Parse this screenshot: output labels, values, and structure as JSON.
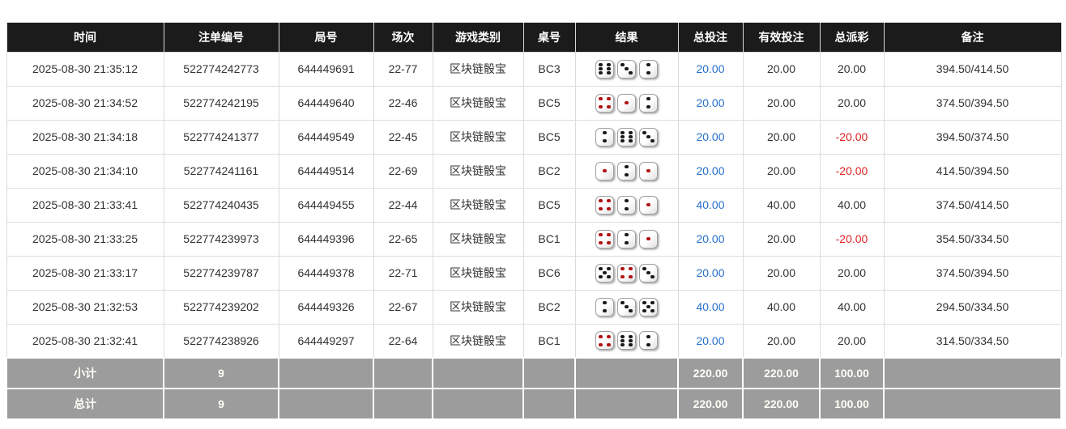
{
  "table": {
    "headers": [
      "时间",
      "注单编号",
      "局号",
      "场次",
      "游戏类别",
      "桌号",
      "结果",
      "总投注",
      "有效投注",
      "总派彩",
      "备注"
    ],
    "rows": [
      {
        "time": "2025-08-30 21:35:12",
        "bet_id": "522774242773",
        "round_id": "644449691",
        "session": "22-77",
        "game": "区块链骰宝",
        "table_no": "BC3",
        "dice": [
          6,
          3,
          2
        ],
        "total_bet": "20.00",
        "valid_bet": "20.00",
        "payout": "20.00",
        "remark": "394.50/414.50"
      },
      {
        "time": "2025-08-30 21:34:52",
        "bet_id": "522774242195",
        "round_id": "644449640",
        "session": "22-46",
        "game": "区块链骰宝",
        "table_no": "BC5",
        "dice": [
          4,
          1,
          2
        ],
        "total_bet": "20.00",
        "valid_bet": "20.00",
        "payout": "20.00",
        "remark": "374.50/394.50"
      },
      {
        "time": "2025-08-30 21:34:18",
        "bet_id": "522774241377",
        "round_id": "644449549",
        "session": "22-45",
        "game": "区块链骰宝",
        "table_no": "BC5",
        "dice": [
          2,
          6,
          3
        ],
        "total_bet": "20.00",
        "valid_bet": "20.00",
        "payout": "-20.00",
        "remark": "394.50/374.50"
      },
      {
        "time": "2025-08-30 21:34:10",
        "bet_id": "522774241161",
        "round_id": "644449514",
        "session": "22-69",
        "game": "区块链骰宝",
        "table_no": "BC2",
        "dice": [
          1,
          2,
          1
        ],
        "total_bet": "20.00",
        "valid_bet": "20.00",
        "payout": "-20.00",
        "remark": "414.50/394.50"
      },
      {
        "time": "2025-08-30 21:33:41",
        "bet_id": "522774240435",
        "round_id": "644449455",
        "session": "22-44",
        "game": "区块链骰宝",
        "table_no": "BC5",
        "dice": [
          4,
          2,
          1
        ],
        "total_bet": "40.00",
        "valid_bet": "40.00",
        "payout": "40.00",
        "remark": "374.50/414.50"
      },
      {
        "time": "2025-08-30 21:33:25",
        "bet_id": "522774239973",
        "round_id": "644449396",
        "session": "22-65",
        "game": "区块链骰宝",
        "table_no": "BC1",
        "dice": [
          4,
          2,
          1
        ],
        "total_bet": "20.00",
        "valid_bet": "20.00",
        "payout": "-20.00",
        "remark": "354.50/334.50"
      },
      {
        "time": "2025-08-30 21:33:17",
        "bet_id": "522774239787",
        "round_id": "644449378",
        "session": "22-71",
        "game": "区块链骰宝",
        "table_no": "BC6",
        "dice": [
          5,
          4,
          3
        ],
        "total_bet": "20.00",
        "valid_bet": "20.00",
        "payout": "20.00",
        "remark": "374.50/394.50"
      },
      {
        "time": "2025-08-30 21:32:53",
        "bet_id": "522774239202",
        "round_id": "644449326",
        "session": "22-67",
        "game": "区块链骰宝",
        "table_no": "BC2",
        "dice": [
          2,
          3,
          5
        ],
        "total_bet": "40.00",
        "valid_bet": "40.00",
        "payout": "40.00",
        "remark": "294.50/334.50"
      },
      {
        "time": "2025-08-30 21:32:41",
        "bet_id": "522774238926",
        "round_id": "644449297",
        "session": "22-64",
        "game": "区块链骰宝",
        "table_no": "BC1",
        "dice": [
          4,
          6,
          2
        ],
        "total_bet": "20.00",
        "valid_bet": "20.00",
        "payout": "20.00",
        "remark": "314.50/334.50"
      }
    ],
    "subtotal": {
      "label": "小计",
      "count": "9",
      "total_bet": "220.00",
      "valid_bet": "220.00",
      "payout": "100.00"
    },
    "grandtotal": {
      "label": "总计",
      "count": "9",
      "total_bet": "220.00",
      "valid_bet": "220.00",
      "payout": "100.00"
    }
  },
  "colors": {
    "header_bg": "#1b1b1b",
    "accent_blue": "#2470cc",
    "negative_red": "#e02020",
    "total_row_bg": "#9c9c9c",
    "die_pip_red": "#b01212"
  }
}
